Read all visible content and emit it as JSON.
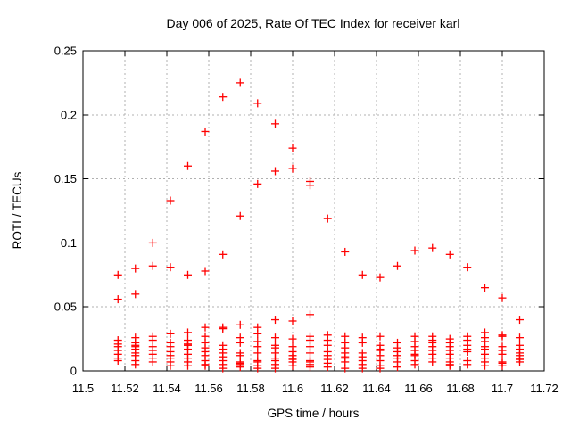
{
  "chart_data": {
    "type": "scatter",
    "title": "Day 006 of 2025, Rate Of TEC Index for receiver karl",
    "xlabel": "GPS time / hours",
    "ylabel": "ROTI / TECUs",
    "xlim": [
      11.5,
      11.72
    ],
    "ylim": [
      0,
      0.25
    ],
    "xticks": [
      11.5,
      11.52,
      11.54,
      11.56,
      11.58,
      11.6,
      11.62,
      11.64,
      11.66,
      11.68,
      11.7,
      11.72
    ],
    "xtick_labels": [
      "11.5",
      "11.52",
      "11.54",
      "11.56",
      "11.58",
      "11.6",
      "11.62",
      "11.64",
      "11.66",
      "11.68",
      "11.7",
      "11.72"
    ],
    "yticks": [
      0,
      0.05,
      0.1,
      0.15,
      0.2,
      0.25
    ],
    "ytick_labels": [
      "0",
      "0.05",
      "0.1",
      "0.15",
      "0.2",
      "0.25"
    ],
    "grid": true,
    "legend_position": "none",
    "marker": {
      "shape": "plus",
      "color": "#ff0000",
      "size": 9
    },
    "series": [
      {
        "name": "ROTI",
        "columns": [
          {
            "t": 11.5167,
            "v": [
              0.075,
              0.056,
              0.024,
              0.021,
              0.019,
              0.016,
              0.013,
              0.01,
              0.008
            ]
          },
          {
            "t": 11.525,
            "v": [
              0.08,
              0.06,
              0.026,
              0.022,
              0.02,
              0.019,
              0.017,
              0.014,
              0.012,
              0.008,
              0.005
            ]
          },
          {
            "t": 11.5333,
            "v": [
              0.1,
              0.082,
              0.027,
              0.024,
              0.019,
              0.016,
              0.013,
              0.01,
              0.007
            ]
          },
          {
            "t": 11.5417,
            "v": [
              0.133,
              0.081,
              0.029,
              0.022,
              0.019,
              0.015,
              0.012,
              0.01,
              0.007,
              0.004
            ]
          },
          {
            "t": 11.55,
            "v": [
              0.16,
              0.075,
              0.03,
              0.024,
              0.021,
              0.02,
              0.017,
              0.013,
              0.01,
              0.007,
              0.004
            ]
          },
          {
            "t": 11.5583,
            "v": [
              0.187,
              0.078,
              0.034,
              0.027,
              0.022,
              0.018,
              0.015,
              0.012,
              0.008,
              0.005,
              0.004
            ]
          },
          {
            "t": 11.5667,
            "v": [
              0.214,
              0.091,
              0.034,
              0.033,
              0.02,
              0.017,
              0.014,
              0.011,
              0.008,
              0.005,
              0.002
            ]
          },
          {
            "t": 11.575,
            "v": [
              0.225,
              0.121,
              0.036,
              0.026,
              0.022,
              0.014,
              0.012,
              0.007,
              0.006,
              0.005,
              0.003
            ]
          },
          {
            "t": 11.5833,
            "v": [
              0.209,
              0.146,
              0.034,
              0.029,
              0.023,
              0.019,
              0.014,
              0.008,
              0.007,
              0.004,
              0.002
            ]
          },
          {
            "t": 11.5917,
            "v": [
              0.193,
              0.156,
              0.04,
              0.026,
              0.02,
              0.018,
              0.014,
              0.01,
              0.008,
              0.005,
              0.002
            ]
          },
          {
            "t": 11.6,
            "v": [
              0.174,
              0.158,
              0.039,
              0.025,
              0.019,
              0.015,
              0.012,
              0.01,
              0.009,
              0.007,
              0.004
            ]
          },
          {
            "t": 11.6083,
            "v": [
              0.148,
              0.145,
              0.044,
              0.027,
              0.024,
              0.019,
              0.014,
              0.008,
              0.007,
              0.005,
              0.003
            ]
          },
          {
            "t": 11.6167,
            "v": [
              0.119,
              0.028,
              0.024,
              0.02,
              0.015,
              0.012,
              0.009,
              0.006,
              0.003
            ]
          },
          {
            "t": 11.625,
            "v": [
              0.093,
              0.027,
              0.022,
              0.018,
              0.014,
              0.011,
              0.01,
              0.007,
              0.002
            ]
          },
          {
            "t": 11.6333,
            "v": [
              0.075,
              0.026,
              0.022,
              0.014,
              0.011,
              0.008,
              0.005,
              0.002
            ]
          },
          {
            "t": 11.6417,
            "v": [
              0.073,
              0.027,
              0.02,
              0.017,
              0.016,
              0.012,
              0.008,
              0.004,
              0.002
            ]
          },
          {
            "t": 11.65,
            "v": [
              0.082,
              0.022,
              0.018,
              0.015,
              0.012,
              0.01,
              0.007,
              0.003
            ]
          },
          {
            "t": 11.6583,
            "v": [
              0.094,
              0.027,
              0.023,
              0.019,
              0.016,
              0.013,
              0.012,
              0.008,
              0.005
            ]
          },
          {
            "t": 11.6667,
            "v": [
              0.096,
              0.027,
              0.024,
              0.022,
              0.019,
              0.016,
              0.013,
              0.01,
              0.007
            ]
          },
          {
            "t": 11.675,
            "v": [
              0.091,
              0.025,
              0.022,
              0.019,
              0.016,
              0.013,
              0.01,
              0.007,
              0.005,
              0.004
            ]
          },
          {
            "t": 11.6833,
            "v": [
              0.081,
              0.027,
              0.024,
              0.02,
              0.017,
              0.015,
              0.008,
              0.005
            ]
          },
          {
            "t": 11.6917,
            "v": [
              0.065,
              0.03,
              0.026,
              0.023,
              0.019,
              0.017,
              0.013,
              0.01,
              0.007,
              0.004
            ]
          },
          {
            "t": 11.7,
            "v": [
              0.057,
              0.028,
              0.027,
              0.019,
              0.016,
              0.013,
              0.007,
              0.006,
              0.004
            ]
          },
          {
            "t": 11.7083,
            "v": [
              0.04,
              0.026,
              0.02,
              0.017,
              0.014,
              0.012,
              0.01,
              0.009,
              0.007
            ]
          }
        ]
      }
    ],
    "colors": {
      "background": "#ffffff",
      "border": "#000000",
      "grid": "#b0b0b0",
      "marker": "#ff0000",
      "text": "#000000"
    }
  }
}
